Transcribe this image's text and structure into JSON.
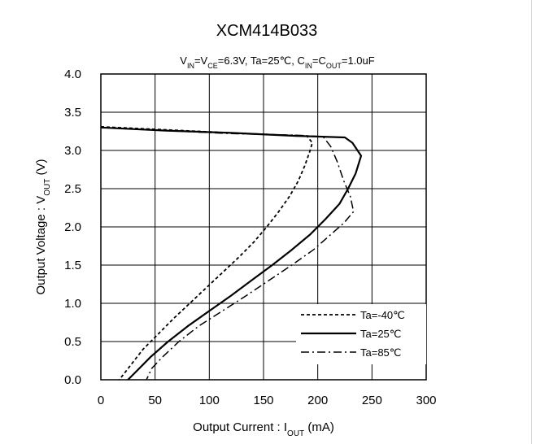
{
  "chart_data": {
    "type": "line",
    "title": "XCM414B033",
    "subtitle": {
      "parts": [
        {
          "t": "V"
        },
        {
          "t": "IN",
          "sub": true
        },
        {
          "t": "=V"
        },
        {
          "t": "CE",
          "sub": true
        },
        {
          "t": "=6.3V, Ta=25℃, C"
        },
        {
          "t": "IN",
          "sub": true
        },
        {
          "t": "=C"
        },
        {
          "t": "OUT",
          "sub": true
        },
        {
          "t": "=1.0uF"
        }
      ]
    },
    "xlabel": {
      "parts": [
        {
          "t": "Output  Current : I"
        },
        {
          "t": "OUT",
          "sub": true
        },
        {
          "t": "  (mA)"
        }
      ]
    },
    "ylabel": {
      "parts": [
        {
          "t": "Output Voltage : V"
        },
        {
          "t": "OUT",
          "sub": true
        },
        {
          "t": " (V)"
        }
      ]
    },
    "xlim": [
      0,
      300
    ],
    "ylim": [
      0,
      4.0
    ],
    "xticks": [
      "0",
      "50",
      "100",
      "150",
      "200",
      "250",
      "300"
    ],
    "yticks": [
      "0.0",
      "0.5",
      "1.0",
      "1.5",
      "2.0",
      "2.5",
      "3.0",
      "3.5",
      "4.0"
    ],
    "grid": true,
    "legend_position": "bottom-right",
    "series": [
      {
        "name": "Ta=-40℃",
        "dash": "dashed",
        "points": [
          [
            0,
            3.31
          ],
          [
            60,
            3.27
          ],
          [
            120,
            3.23
          ],
          [
            170,
            3.2
          ],
          [
            190,
            3.19
          ],
          [
            195,
            3.1
          ],
          [
            193,
            3.0
          ],
          [
            188,
            2.8
          ],
          [
            182,
            2.6
          ],
          [
            174,
            2.4
          ],
          [
            164,
            2.2
          ],
          [
            153,
            2.0
          ],
          [
            141,
            1.8
          ],
          [
            127,
            1.6
          ],
          [
            112,
            1.4
          ],
          [
            97,
            1.2
          ],
          [
            82,
            1.0
          ],
          [
            67,
            0.8
          ],
          [
            53,
            0.6
          ],
          [
            39,
            0.4
          ],
          [
            28,
            0.2
          ],
          [
            17,
            0.0
          ]
        ]
      },
      {
        "name": "Ta=25℃",
        "dash": "solid",
        "points": [
          [
            0,
            3.3
          ],
          [
            60,
            3.26
          ],
          [
            120,
            3.23
          ],
          [
            180,
            3.19
          ],
          [
            225,
            3.17
          ],
          [
            232,
            3.1
          ],
          [
            240,
            2.93
          ],
          [
            235,
            2.7
          ],
          [
            228,
            2.5
          ],
          [
            220,
            2.3
          ],
          [
            207,
            2.1
          ],
          [
            193,
            1.9
          ],
          [
            176,
            1.7
          ],
          [
            158,
            1.5
          ],
          [
            139,
            1.3
          ],
          [
            120,
            1.1
          ],
          [
            100,
            0.9
          ],
          [
            80,
            0.7
          ],
          [
            62,
            0.5
          ],
          [
            46,
            0.3
          ],
          [
            32,
            0.1
          ],
          [
            25,
            0.0
          ]
        ]
      },
      {
        "name": "Ta=85℃",
        "dash": "dashdot",
        "points": [
          [
            0,
            3.3
          ],
          [
            60,
            3.26
          ],
          [
            120,
            3.22
          ],
          [
            180,
            3.2
          ],
          [
            205,
            3.18
          ],
          [
            212,
            3.05
          ],
          [
            218,
            2.85
          ],
          [
            224,
            2.6
          ],
          [
            230,
            2.4
          ],
          [
            233,
            2.2
          ],
          [
            224,
            2.05
          ],
          [
            212,
            1.9
          ],
          [
            196,
            1.7
          ],
          [
            176,
            1.5
          ],
          [
            155,
            1.3
          ],
          [
            134,
            1.1
          ],
          [
            112,
            0.9
          ],
          [
            90,
            0.7
          ],
          [
            72,
            0.5
          ],
          [
            57,
            0.3
          ],
          [
            47,
            0.15
          ],
          [
            42,
            0.0
          ]
        ]
      }
    ]
  }
}
